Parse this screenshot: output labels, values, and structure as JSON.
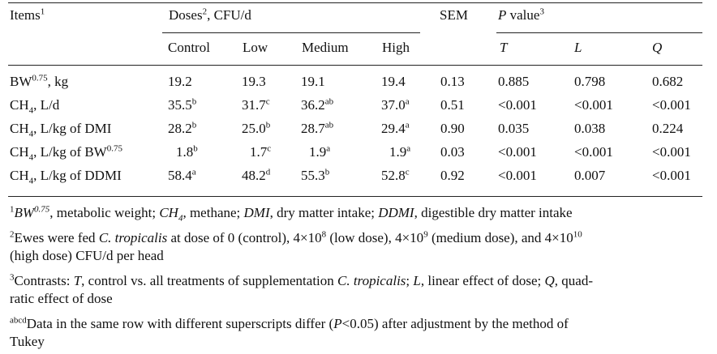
{
  "header": {
    "items": "Items",
    "items_sup": "1",
    "doses": "Doses",
    "doses_sup": "2",
    "doses_unit": ", CFU/d",
    "sem": "SEM",
    "pvalue_p": "P",
    "pvalue_rest": " value",
    "pvalue_sup": "3",
    "subcols": [
      "Control",
      "Low",
      "Medium",
      "High"
    ],
    "contrasts": [
      "T",
      "L",
      "Q"
    ]
  },
  "rows": [
    {
      "label_pre": "BW",
      "label_sup": "0.75",
      "label_sub": "",
      "label_post": ", kg",
      "values": [
        [
          "19.2",
          ""
        ],
        [
          "19.3",
          ""
        ],
        [
          "19.1",
          ""
        ],
        [
          "19.4",
          ""
        ]
      ],
      "sem": "0.13",
      "p": [
        "0.885",
        "0.798",
        "0.682"
      ]
    },
    {
      "label_pre": "CH",
      "label_sup": "",
      "label_sub": "4",
      "label_post": ", L/d",
      "values": [
        [
          "35.5",
          "b"
        ],
        [
          "31.7",
          "c"
        ],
        [
          "36.2",
          "ab"
        ],
        [
          "37.0",
          "a"
        ]
      ],
      "sem": "0.51",
      "p": [
        "<0.001",
        "<0.001",
        "<0.001"
      ]
    },
    {
      "label_pre": "CH",
      "label_sup": "",
      "label_sub": "4",
      "label_post": ", L/kg of DMI",
      "values": [
        [
          "28.2",
          "b"
        ],
        [
          "25.0",
          "b"
        ],
        [
          "28.7",
          "ab"
        ],
        [
          "29.4",
          "a"
        ]
      ],
      "sem": "0.90",
      "p": [
        "0.035",
        "0.038",
        "0.224"
      ]
    },
    {
      "label_pre": "CH",
      "label_sup": "",
      "label_sub": "4",
      "label_post": ", L/kg of BW",
      "label_post_sup": "0.75",
      "values": [
        [
          "1.8",
          "b"
        ],
        [
          "1.7",
          "c"
        ],
        [
          "1.9",
          "a"
        ],
        [
          "1.9",
          "a"
        ]
      ],
      "sem": "0.03",
      "p": [
        "<0.001",
        "<0.001",
        "<0.001"
      ]
    },
    {
      "label_pre": "CH",
      "label_sup": "",
      "label_sub": "4",
      "label_post": ", L/kg of DDMI",
      "values": [
        [
          "58.4",
          "a"
        ],
        [
          "48.2",
          "d"
        ],
        [
          "55.3",
          "b"
        ],
        [
          "52.8",
          "c"
        ]
      ],
      "sem": "0.92",
      "p": [
        "<0.001",
        "0.007",
        "<0.001"
      ]
    }
  ],
  "footnotes": {
    "f1": {
      "mark": "1",
      "bw": "BW",
      "bw_sup": "0.75",
      "t1": ", metabolic weight; ",
      "ch": "CH",
      "ch_sub": "4",
      "t2": ", methane; ",
      "dmi": "DMI",
      "t3": ", dry matter intake; ",
      "ddmi": "DDMI",
      "t4": ", digestible dry matter intake"
    },
    "f2": {
      "mark": "2",
      "t1": "Ewes were fed ",
      "species": "C. tropicalis",
      "t2": " at dose of 0 (control), 4×10",
      "e1": "8",
      "t3": " (low dose), 4×10",
      "e2": "9",
      "t4": " (medium dose), and 4×10",
      "e3": "10",
      "t5": "(high dose) CFU/d per head"
    },
    "f3": {
      "mark": "3",
      "t1": "Contrasts: ",
      "T": "T",
      "t2": ", control vs. all treatments of supplementation ",
      "species": "C. tropicalis",
      "t3": "; ",
      "L": "L",
      "t4": ", linear effect of dose; ",
      "Q": "Q",
      "t5": ", quad-",
      "t6": "ratic effect of dose"
    },
    "f4": {
      "mark": "abcd",
      "t1": "Data in the same row with different superscripts differ (",
      "P": "P",
      "t2": "<0.05) after adjustment by the method of",
      "t3": "Tukey"
    }
  }
}
